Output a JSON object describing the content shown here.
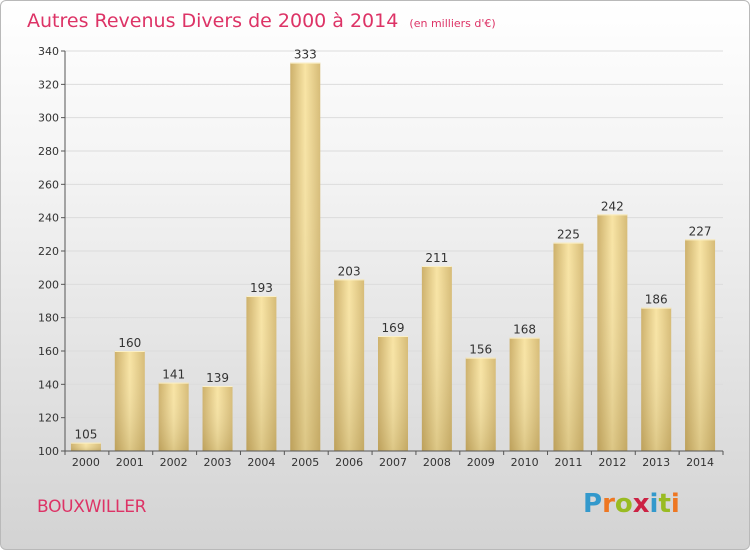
{
  "title": "Autres Revenus Divers de 2000 à 2014",
  "subtitle": "(en milliers d'€)",
  "city": "BOUXWILLER",
  "logo": {
    "letters": [
      "P",
      "r",
      "o",
      "x",
      "i",
      "t",
      "i"
    ],
    "colors": [
      "#3399cc",
      "#ee7722",
      "#99bb22",
      "#cc2244",
      "#3399cc",
      "#99bb22",
      "#ee7722"
    ]
  },
  "colors": {
    "title": "#dd3366",
    "bar_light": "#f7e3a2",
    "bar_dark": "#c9ac62",
    "axis": "#555555",
    "grid": "#dddddd"
  },
  "chart_data": {
    "type": "bar",
    "categories": [
      "2000",
      "2001",
      "2002",
      "2003",
      "2004",
      "2005",
      "2006",
      "2007",
      "2008",
      "2009",
      "2010",
      "2011",
      "2012",
      "2013",
      "2014"
    ],
    "values": [
      105,
      160,
      141,
      139,
      193,
      333,
      203,
      169,
      211,
      156,
      168,
      225,
      242,
      186,
      227
    ],
    "ylim": [
      100,
      340
    ],
    "yticks": [
      100,
      120,
      140,
      160,
      180,
      200,
      220,
      240,
      260,
      280,
      300,
      320,
      340
    ],
    "title": "Autres Revenus Divers de 2000 à 2014",
    "xlabel": "",
    "ylabel": "",
    "grid": "horizontal"
  }
}
